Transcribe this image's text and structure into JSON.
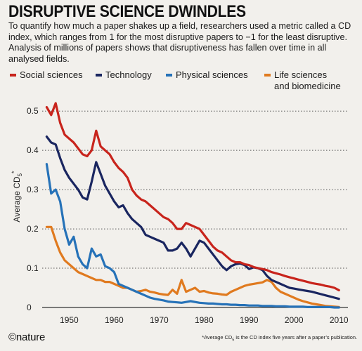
{
  "header": {
    "title": "DISRUPTIVE SCIENCE DWINDLES",
    "subtitle": "To quantify how much a paper shakes up a field, researchers used a metric called a CD index, which ranges from 1 for the most disruptive papers to −1 for the least disruptive. Analysis of millions of papers shows that disruptiveness has fallen over time in all analysed fields."
  },
  "footer": {
    "logo": "©nature",
    "footnote_a": "*Average CD",
    "footnote_sub": "5",
    "footnote_b": " is the CD index five years after a paper’s publication."
  },
  "chart_data": {
    "type": "line",
    "title": "DISRUPTIVE SCIENCE DWINDLES",
    "xlabel": "",
    "ylabel": "Average CD5*",
    "ylabel_main": "Average CD",
    "ylabel_sub": "5",
    "ylabel_sup": "*",
    "xlim": [
      1944,
      2012
    ],
    "ylim": [
      0,
      0.52
    ],
    "xticks": [
      1950,
      1960,
      1970,
      1980,
      1990,
      2000,
      2010
    ],
    "yticks": [
      0,
      0.1,
      0.2,
      0.3,
      0.4,
      0.5
    ],
    "ytick_labels": [
      "0",
      "0.1",
      "0.2",
      "0.3",
      "0.4",
      "0.5"
    ],
    "grid": "horizontal dotted",
    "legend_position": "top",
    "series": [
      {
        "name": "Social sciences",
        "color": "#c8241c",
        "points": [
          [
            1945,
            0.51
          ],
          [
            1946,
            0.49
          ],
          [
            1947,
            0.52
          ],
          [
            1948,
            0.47
          ],
          [
            1949,
            0.44
          ],
          [
            1950,
            0.43
          ],
          [
            1951,
            0.42
          ],
          [
            1952,
            0.405
          ],
          [
            1953,
            0.39
          ],
          [
            1954,
            0.385
          ],
          [
            1955,
            0.4
          ],
          [
            1956,
            0.45
          ],
          [
            1957,
            0.41
          ],
          [
            1958,
            0.4
          ],
          [
            1959,
            0.39
          ],
          [
            1960,
            0.37
          ],
          [
            1961,
            0.355
          ],
          [
            1962,
            0.345
          ],
          [
            1963,
            0.33
          ],
          [
            1964,
            0.3
          ],
          [
            1965,
            0.285
          ],
          [
            1966,
            0.275
          ],
          [
            1967,
            0.27
          ],
          [
            1968,
            0.26
          ],
          [
            1969,
            0.25
          ],
          [
            1970,
            0.24
          ],
          [
            1971,
            0.23
          ],
          [
            1972,
            0.225
          ],
          [
            1973,
            0.215
          ],
          [
            1974,
            0.2
          ],
          [
            1975,
            0.2
          ],
          [
            1976,
            0.215
          ],
          [
            1977,
            0.21
          ],
          [
            1978,
            0.205
          ],
          [
            1979,
            0.2
          ],
          [
            1980,
            0.185
          ],
          [
            1981,
            0.17
          ],
          [
            1982,
            0.155
          ],
          [
            1983,
            0.145
          ],
          [
            1984,
            0.14
          ],
          [
            1985,
            0.13
          ],
          [
            1986,
            0.12
          ],
          [
            1987,
            0.115
          ],
          [
            1988,
            0.115
          ],
          [
            1989,
            0.11
          ],
          [
            1990,
            0.108
          ],
          [
            1991,
            0.103
          ],
          [
            1992,
            0.1
          ],
          [
            1993,
            0.098
          ],
          [
            1994,
            0.095
          ],
          [
            1995,
            0.09
          ],
          [
            1996,
            0.087
          ],
          [
            1997,
            0.084
          ],
          [
            1998,
            0.08
          ],
          [
            1999,
            0.077
          ],
          [
            2000,
            0.074
          ],
          [
            2001,
            0.071
          ],
          [
            2002,
            0.068
          ],
          [
            2003,
            0.065
          ],
          [
            2004,
            0.062
          ],
          [
            2005,
            0.06
          ],
          [
            2006,
            0.058
          ],
          [
            2007,
            0.055
          ],
          [
            2008,
            0.053
          ],
          [
            2009,
            0.05
          ],
          [
            2010,
            0.044
          ]
        ]
      },
      {
        "name": "Technology",
        "color": "#1a2660",
        "points": [
          [
            1945,
            0.435
          ],
          [
            1946,
            0.42
          ],
          [
            1947,
            0.415
          ],
          [
            1948,
            0.38
          ],
          [
            1949,
            0.35
          ],
          [
            1950,
            0.33
          ],
          [
            1951,
            0.315
          ],
          [
            1952,
            0.3
          ],
          [
            1953,
            0.28
          ],
          [
            1954,
            0.275
          ],
          [
            1955,
            0.32
          ],
          [
            1956,
            0.37
          ],
          [
            1957,
            0.34
          ],
          [
            1958,
            0.31
          ],
          [
            1959,
            0.29
          ],
          [
            1960,
            0.27
          ],
          [
            1961,
            0.255
          ],
          [
            1962,
            0.26
          ],
          [
            1963,
            0.24
          ],
          [
            1964,
            0.225
          ],
          [
            1965,
            0.215
          ],
          [
            1966,
            0.205
          ],
          [
            1967,
            0.185
          ],
          [
            1968,
            0.18
          ],
          [
            1969,
            0.175
          ],
          [
            1970,
            0.17
          ],
          [
            1971,
            0.165
          ],
          [
            1972,
            0.145
          ],
          [
            1973,
            0.145
          ],
          [
            1974,
            0.15
          ],
          [
            1975,
            0.165
          ],
          [
            1976,
            0.15
          ],
          [
            1977,
            0.13
          ],
          [
            1978,
            0.15
          ],
          [
            1979,
            0.17
          ],
          [
            1980,
            0.165
          ],
          [
            1981,
            0.15
          ],
          [
            1982,
            0.135
          ],
          [
            1983,
            0.12
          ],
          [
            1984,
            0.105
          ],
          [
            1985,
            0.095
          ],
          [
            1986,
            0.105
          ],
          [
            1987,
            0.11
          ],
          [
            1988,
            0.112
          ],
          [
            1989,
            0.108
          ],
          [
            1990,
            0.098
          ],
          [
            1991,
            0.102
          ],
          [
            1992,
            0.1
          ],
          [
            1993,
            0.095
          ],
          [
            1994,
            0.08
          ],
          [
            1995,
            0.07
          ],
          [
            1996,
            0.065
          ],
          [
            1997,
            0.06
          ],
          [
            1998,
            0.055
          ],
          [
            1999,
            0.05
          ],
          [
            2000,
            0.048
          ],
          [
            2001,
            0.046
          ],
          [
            2002,
            0.044
          ],
          [
            2003,
            0.042
          ],
          [
            2004,
            0.04
          ],
          [
            2005,
            0.037
          ],
          [
            2006,
            0.034
          ],
          [
            2007,
            0.031
          ],
          [
            2008,
            0.028
          ],
          [
            2009,
            0.025
          ],
          [
            2010,
            0.022
          ]
        ]
      },
      {
        "name": "Physical sciences",
        "color": "#2672b8",
        "points": [
          [
            1945,
            0.365
          ],
          [
            1946,
            0.29
          ],
          [
            1947,
            0.3
          ],
          [
            1948,
            0.27
          ],
          [
            1949,
            0.2
          ],
          [
            1950,
            0.16
          ],
          [
            1951,
            0.18
          ],
          [
            1952,
            0.13
          ],
          [
            1953,
            0.11
          ],
          [
            1954,
            0.1
          ],
          [
            1955,
            0.15
          ],
          [
            1956,
            0.13
          ],
          [
            1957,
            0.135
          ],
          [
            1958,
            0.105
          ],
          [
            1959,
            0.1
          ],
          [
            1960,
            0.09
          ],
          [
            1961,
            0.06
          ],
          [
            1962,
            0.055
          ],
          [
            1963,
            0.05
          ],
          [
            1964,
            0.045
          ],
          [
            1965,
            0.04
          ],
          [
            1966,
            0.035
          ],
          [
            1967,
            0.03
          ],
          [
            1968,
            0.025
          ],
          [
            1969,
            0.022
          ],
          [
            1970,
            0.02
          ],
          [
            1971,
            0.018
          ],
          [
            1972,
            0.015
          ],
          [
            1973,
            0.014
          ],
          [
            1974,
            0.013
          ],
          [
            1975,
            0.012
          ],
          [
            1976,
            0.014
          ],
          [
            1977,
            0.016
          ],
          [
            1978,
            0.014
          ],
          [
            1979,
            0.012
          ],
          [
            1980,
            0.011
          ],
          [
            1981,
            0.01
          ],
          [
            1982,
            0.01
          ],
          [
            1983,
            0.009
          ],
          [
            1984,
            0.008
          ],
          [
            1985,
            0.008
          ],
          [
            1986,
            0.007
          ],
          [
            1987,
            0.007
          ],
          [
            1988,
            0.006
          ],
          [
            1989,
            0.006
          ],
          [
            1990,
            0.005
          ],
          [
            1991,
            0.005
          ],
          [
            1992,
            0.005
          ],
          [
            1993,
            0.004
          ],
          [
            1994,
            0.004
          ],
          [
            1995,
            0.004
          ],
          [
            1996,
            0.003
          ],
          [
            1997,
            0.003
          ],
          [
            1998,
            0.003
          ],
          [
            1999,
            0.002
          ],
          [
            2000,
            0.002
          ],
          [
            2001,
            0.002
          ],
          [
            2002,
            0.002
          ],
          [
            2003,
            0.001
          ],
          [
            2004,
            0.001
          ],
          [
            2005,
            0.001
          ],
          [
            2006,
            0.001
          ],
          [
            2007,
            0.001
          ],
          [
            2008,
            0.001
          ],
          [
            2009,
            0.0
          ],
          [
            2010,
            0.0
          ]
        ]
      },
      {
        "name": "Life sciences and biomedicine",
        "name_line1": "Life sciences",
        "name_line2": "and biomedicine",
        "color": "#e07a1f",
        "points": [
          [
            1945,
            0.205
          ],
          [
            1946,
            0.205
          ],
          [
            1947,
            0.17
          ],
          [
            1948,
            0.14
          ],
          [
            1949,
            0.12
          ],
          [
            1950,
            0.11
          ],
          [
            1951,
            0.1
          ],
          [
            1952,
            0.09
          ],
          [
            1953,
            0.085
          ],
          [
            1954,
            0.08
          ],
          [
            1955,
            0.075
          ],
          [
            1956,
            0.07
          ],
          [
            1957,
            0.07
          ],
          [
            1958,
            0.065
          ],
          [
            1959,
            0.065
          ],
          [
            1960,
            0.06
          ],
          [
            1961,
            0.055
          ],
          [
            1962,
            0.05
          ],
          [
            1963,
            0.05
          ],
          [
            1964,
            0.045
          ],
          [
            1965,
            0.04
          ],
          [
            1966,
            0.042
          ],
          [
            1967,
            0.045
          ],
          [
            1968,
            0.04
          ],
          [
            1969,
            0.038
          ],
          [
            1970,
            0.035
          ],
          [
            1971,
            0.033
          ],
          [
            1972,
            0.032
          ],
          [
            1973,
            0.045
          ],
          [
            1974,
            0.035
          ],
          [
            1975,
            0.07
          ],
          [
            1976,
            0.04
          ],
          [
            1977,
            0.045
          ],
          [
            1978,
            0.05
          ],
          [
            1979,
            0.04
          ],
          [
            1980,
            0.042
          ],
          [
            1981,
            0.038
          ],
          [
            1982,
            0.036
          ],
          [
            1983,
            0.035
          ],
          [
            1984,
            0.033
          ],
          [
            1985,
            0.032
          ],
          [
            1986,
            0.04
          ],
          [
            1987,
            0.045
          ],
          [
            1988,
            0.05
          ],
          [
            1989,
            0.055
          ],
          [
            1990,
            0.058
          ],
          [
            1991,
            0.06
          ],
          [
            1992,
            0.062
          ],
          [
            1993,
            0.064
          ],
          [
            1994,
            0.07
          ],
          [
            1995,
            0.065
          ],
          [
            1996,
            0.05
          ],
          [
            1997,
            0.04
          ],
          [
            1998,
            0.035
          ],
          [
            1999,
            0.03
          ],
          [
            2000,
            0.025
          ],
          [
            2001,
            0.02
          ],
          [
            2002,
            0.016
          ],
          [
            2003,
            0.013
          ],
          [
            2004,
            0.01
          ],
          [
            2005,
            0.008
          ],
          [
            2006,
            0.006
          ],
          [
            2007,
            0.004
          ],
          [
            2008,
            0.003
          ],
          [
            2009,
            0.002
          ],
          [
            2010,
            0.001
          ]
        ]
      }
    ]
  }
}
